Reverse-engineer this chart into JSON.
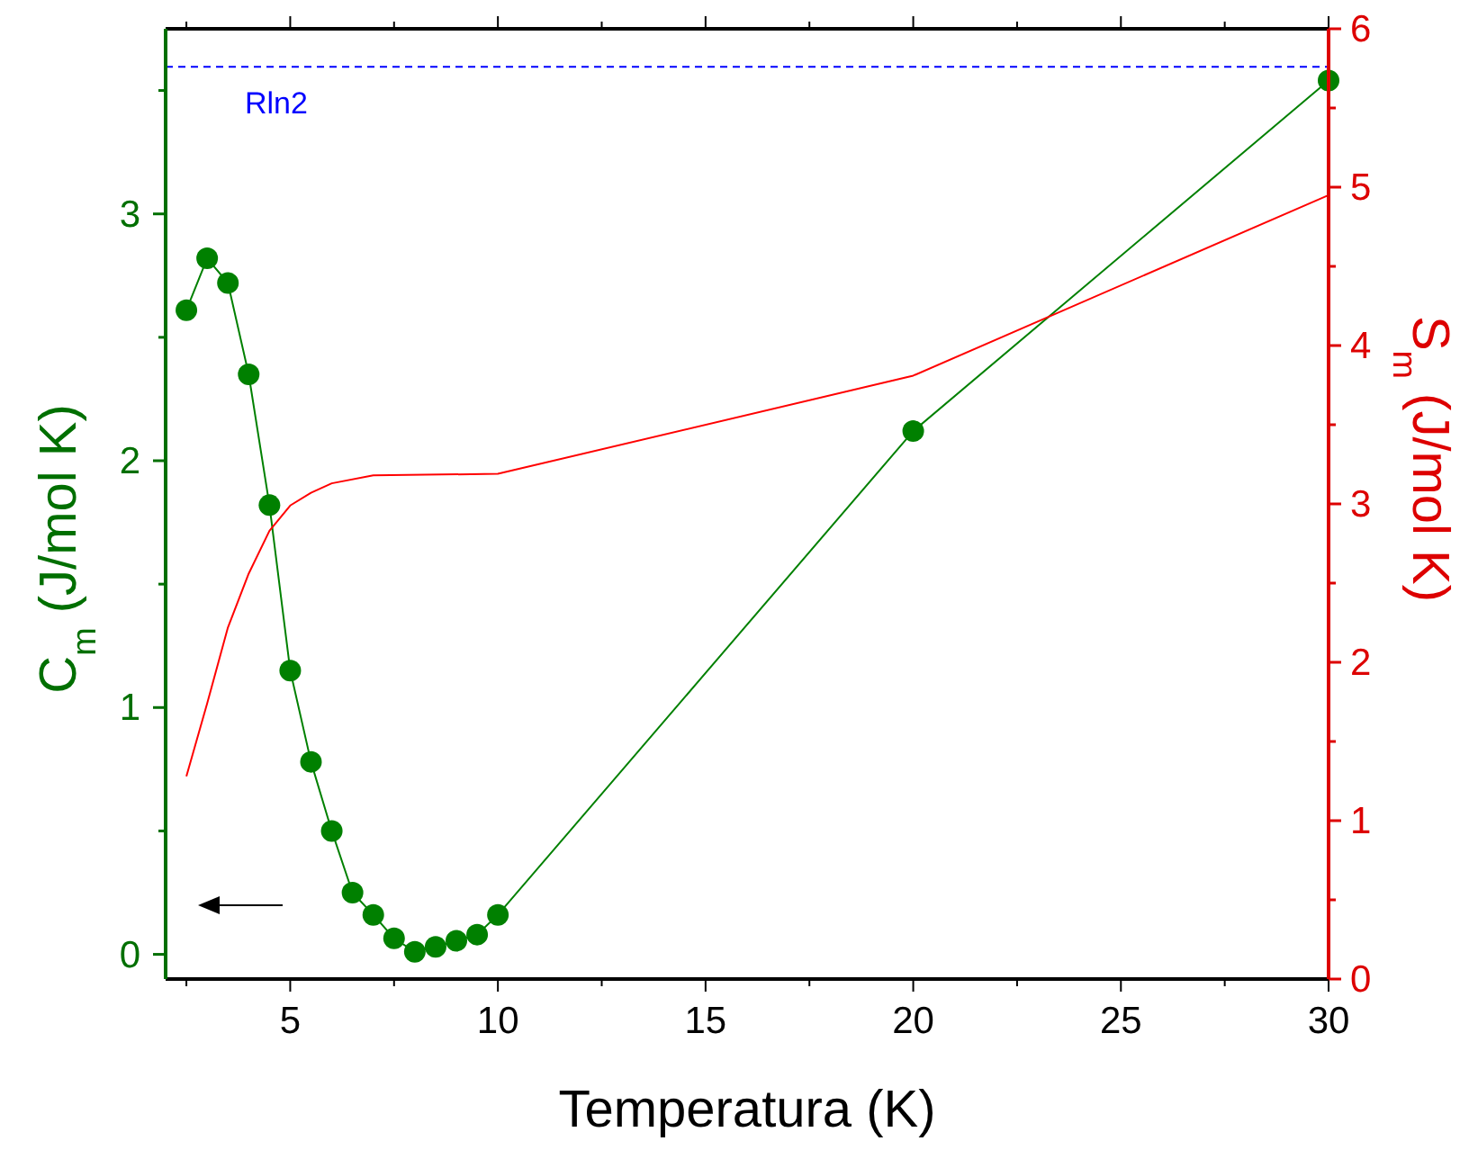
{
  "chart_data": {
    "type": "line",
    "xlabel": "Temperatura (K)",
    "ylabel": "C$_{m}$ (J/mol K)",
    "y2label": "S$_{m}$ (J/mol K)",
    "xlim": [
      2,
      30
    ],
    "xticks": [
      {
        "value": 2.5,
        "label": null
      },
      5,
      {
        "value": 7.5,
        "label": null
      },
      10,
      {
        "value": 12.5,
        "label": null
      },
      15,
      {
        "value": 17.5,
        "label": null
      },
      20,
      {
        "value": 22.5,
        "label": null
      },
      25,
      {
        "value": 27.5,
        "label": null
      },
      30
    ],
    "ylim": [
      -0.1,
      3.75
    ],
    "yticks": [
      0,
      {
        "value": 0.5,
        "label": null
      },
      1,
      {
        "value": 1.5,
        "label": null
      },
      2,
      {
        "value": 2.5,
        "label": null
      },
      3,
      {
        "value": 3.5,
        "label": null
      }
    ],
    "y2lim": [
      0,
      6
    ],
    "y2ticks": [
      0,
      {
        "value": 0.5,
        "label": null
      },
      1,
      {
        "value": 1.5,
        "label": null
      },
      2,
      {
        "value": 2.5,
        "label": null
      },
      3,
      {
        "value": 3.5,
        "label": null
      },
      4,
      {
        "value": 4.5,
        "label": null
      },
      5,
      {
        "value": 5.5,
        "label": null
      },
      6
    ],
    "series": [
      {
        "color": "#008000",
        "marker": "circle",
        "x": [
          2.5,
          3,
          3.5,
          4,
          4.5,
          5,
          5.5,
          6,
          6.5,
          7,
          7.5,
          8,
          8.5,
          9,
          9.5,
          10,
          20,
          30
        ],
        "values": [
          2.61,
          2.82,
          2.72,
          2.35,
          1.82,
          1.15,
          0.78,
          0.5,
          0.25,
          0.16,
          0.065,
          0.01,
          0.03,
          0.055,
          0.08,
          0.16,
          2.12,
          3.54
        ]
      },
      {
        "color": "#ff0000",
        "marker": "none",
        "axis": "y2",
        "x": [
          2.5,
          3,
          3.5,
          4,
          4.5,
          5,
          5.5,
          6,
          7,
          10,
          20,
          30
        ],
        "values": [
          1.28,
          1.74,
          2.22,
          2.56,
          2.83,
          2.99,
          3.07,
          3.13,
          3.18,
          3.19,
          3.81,
          4.95
        ]
      }
    ],
    "ref_lines": [
      {
        "axis": "y2",
        "value": 5.76,
        "label": "Rln2",
        "color": "#0000ff",
        "line_style": "dashed"
      }
    ],
    "grid": false
  }
}
